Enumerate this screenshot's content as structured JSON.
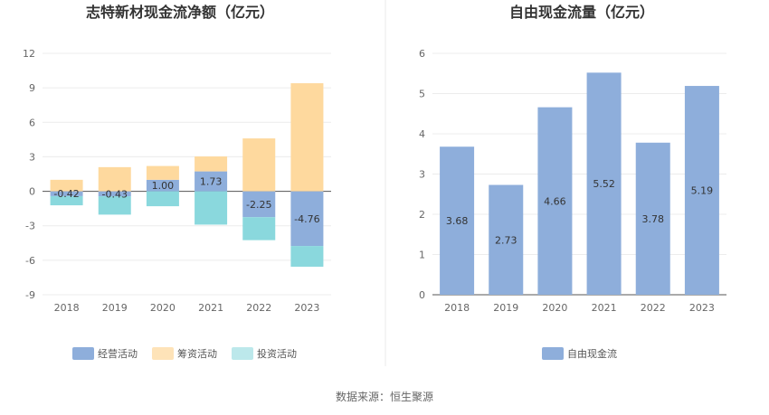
{
  "chart_data": [
    {
      "type": "bar",
      "stacked": true,
      "title": "志特新材现金流净额（亿元）",
      "categories": [
        "2018",
        "2019",
        "2020",
        "2021",
        "2022",
        "2023"
      ],
      "ylim": [
        -9,
        12
      ],
      "yticks": [
        -9,
        -6,
        -3,
        0,
        3,
        6,
        9,
        12
      ],
      "grid": true,
      "legend_position": "bottom",
      "series": [
        {
          "name": "经营活动",
          "color": "#8eaedb",
          "values": [
            -0.42,
            -0.43,
            1.0,
            1.73,
            -2.25,
            -4.76
          ]
        },
        {
          "name": "筹资活动",
          "color": "#fed99e",
          "values": [
            1.0,
            2.1,
            1.2,
            1.3,
            4.6,
            9.4
          ]
        },
        {
          "name": "投资活动",
          "color": "#8ad8dd",
          "values": [
            -0.8,
            -1.6,
            -1.3,
            -2.9,
            -2.0,
            -1.8
          ]
        }
      ],
      "data_labels": [
        "-0.42",
        "-0.43",
        "1.00",
        "1.73",
        "-2.25",
        "-4.76"
      ]
    },
    {
      "type": "bar",
      "title": "自由现金流量（亿元）",
      "categories": [
        "2018",
        "2019",
        "2020",
        "2021",
        "2022",
        "2023"
      ],
      "ylim": [
        0,
        6
      ],
      "yticks": [
        0,
        1,
        2,
        3,
        4,
        5,
        6
      ],
      "grid": true,
      "legend_position": "bottom",
      "series": [
        {
          "name": "自由现金流",
          "color": "#8eaedb",
          "values": [
            3.68,
            2.73,
            4.66,
            5.52,
            3.78,
            5.19
          ]
        }
      ],
      "data_labels": [
        "3.68",
        "2.73",
        "4.66",
        "5.52",
        "3.78",
        "5.19"
      ]
    }
  ],
  "footer": {
    "source": "数据来源：恒生聚源"
  }
}
